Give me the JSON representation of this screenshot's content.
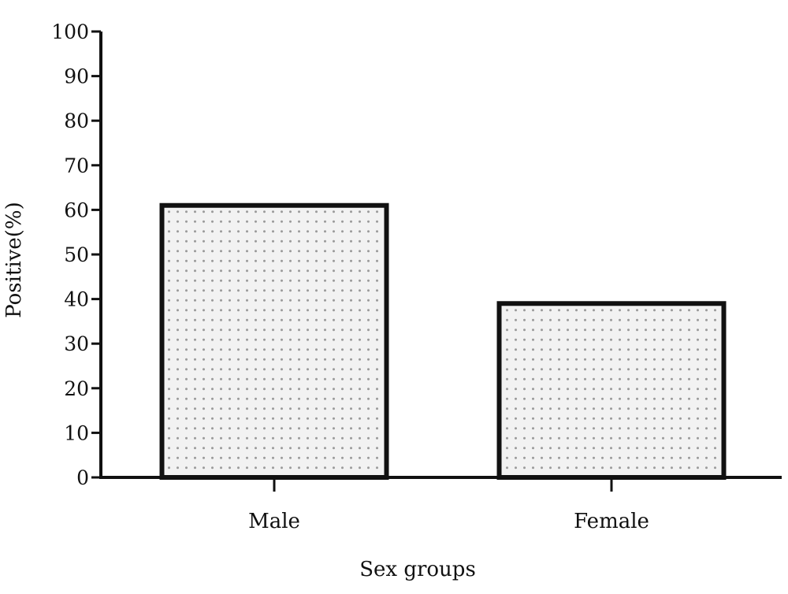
{
  "chart_data": {
    "type": "bar",
    "categories": [
      "Male",
      "Female"
    ],
    "values": [
      61,
      39
    ],
    "xlabel": "Sex groups",
    "ylabel": "Positive(%)",
    "ylim": [
      0,
      100
    ],
    "yticks": [
      "0",
      "10",
      "20",
      "30",
      "40",
      "50",
      "60",
      "70",
      "80",
      "90",
      "100"
    ],
    "grid": false,
    "legend": "none",
    "bar_fill": "dotted",
    "colors": {
      "bar_outline": "#111111",
      "bar_fill": "#f2f2f2",
      "bar_dots": "#9a9a9a",
      "axis": "#111111"
    }
  }
}
